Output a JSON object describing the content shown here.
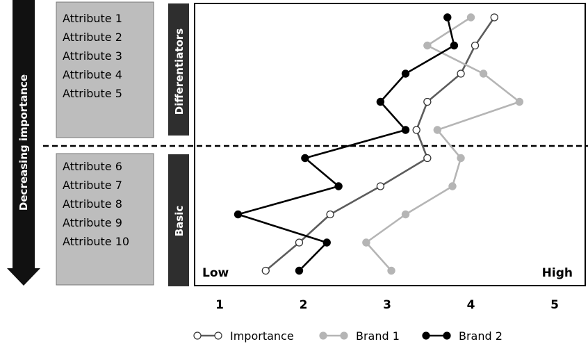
{
  "side_arrow": {
    "label": "Decreasing importance"
  },
  "group_labels": {
    "top": "Differentiators",
    "bottom": "Basic"
  },
  "attributes_top": [
    "Attribute 1",
    "Attribute 2",
    "Attribute 3",
    "Attribute 4",
    "Attribute 5"
  ],
  "attributes_bottom": [
    "Attribute 6",
    "Attribute 7",
    "Attribute 8",
    "Attribute 9",
    "Attribute 10"
  ],
  "plot_labels": {
    "low": "Low",
    "high": "High"
  },
  "colors": {
    "importance": "#5c5c5c",
    "brand1": "#b5b5b5",
    "brand2": "#000000",
    "panel": "#bdbdbd",
    "tab": "#2e2e2e"
  },
  "chart_data": {
    "type": "line",
    "x_ticks": [
      1,
      2,
      3,
      4,
      5
    ],
    "xlim": [
      0.7,
      5.3
    ],
    "attribute_count": 10,
    "series": [
      {
        "name": "Importance",
        "marker": "hollow",
        "color": "#5c5c5c",
        "values": [
          4.28,
          4.05,
          3.88,
          3.48,
          3.35,
          3.48,
          2.92,
          2.32,
          1.95,
          1.55
        ]
      },
      {
        "name": "Brand 1",
        "marker": "filled",
        "color": "#b5b5b5",
        "values": [
          4.0,
          3.48,
          4.15,
          4.58,
          3.6,
          3.88,
          3.78,
          3.22,
          2.75,
          3.05
        ]
      },
      {
        "name": "Brand 2",
        "marker": "filled",
        "color": "#000000",
        "values": [
          3.72,
          3.8,
          3.22,
          2.92,
          3.22,
          2.02,
          2.42,
          1.22,
          2.28,
          1.95
        ]
      }
    ]
  }
}
